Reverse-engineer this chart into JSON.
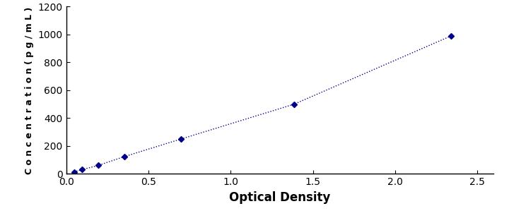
{
  "x": [
    0.047,
    0.097,
    0.197,
    0.355,
    0.697,
    1.385,
    2.34
  ],
  "y": [
    15,
    31,
    62,
    125,
    250,
    500,
    990
  ],
  "line_color": "#00008B",
  "marker_color": "#00008B",
  "marker": "D",
  "marker_size": 4,
  "line_width": 1.0,
  "line_style": ":",
  "xlabel": "Optical Density",
  "ylabel": "C o n c e n t r a t i o n ( p g / m L )",
  "xlim": [
    0,
    2.6
  ],
  "ylim": [
    0,
    1200
  ],
  "xticks": [
    0,
    0.5,
    1,
    1.5,
    2,
    2.5
  ],
  "yticks": [
    0,
    200,
    400,
    600,
    800,
    1000,
    1200
  ],
  "background_color": "#ffffff",
  "plot_bg_color": "#ffffff",
  "xlabel_fontsize": 12,
  "ylabel_fontsize": 9,
  "tick_fontsize": 10
}
